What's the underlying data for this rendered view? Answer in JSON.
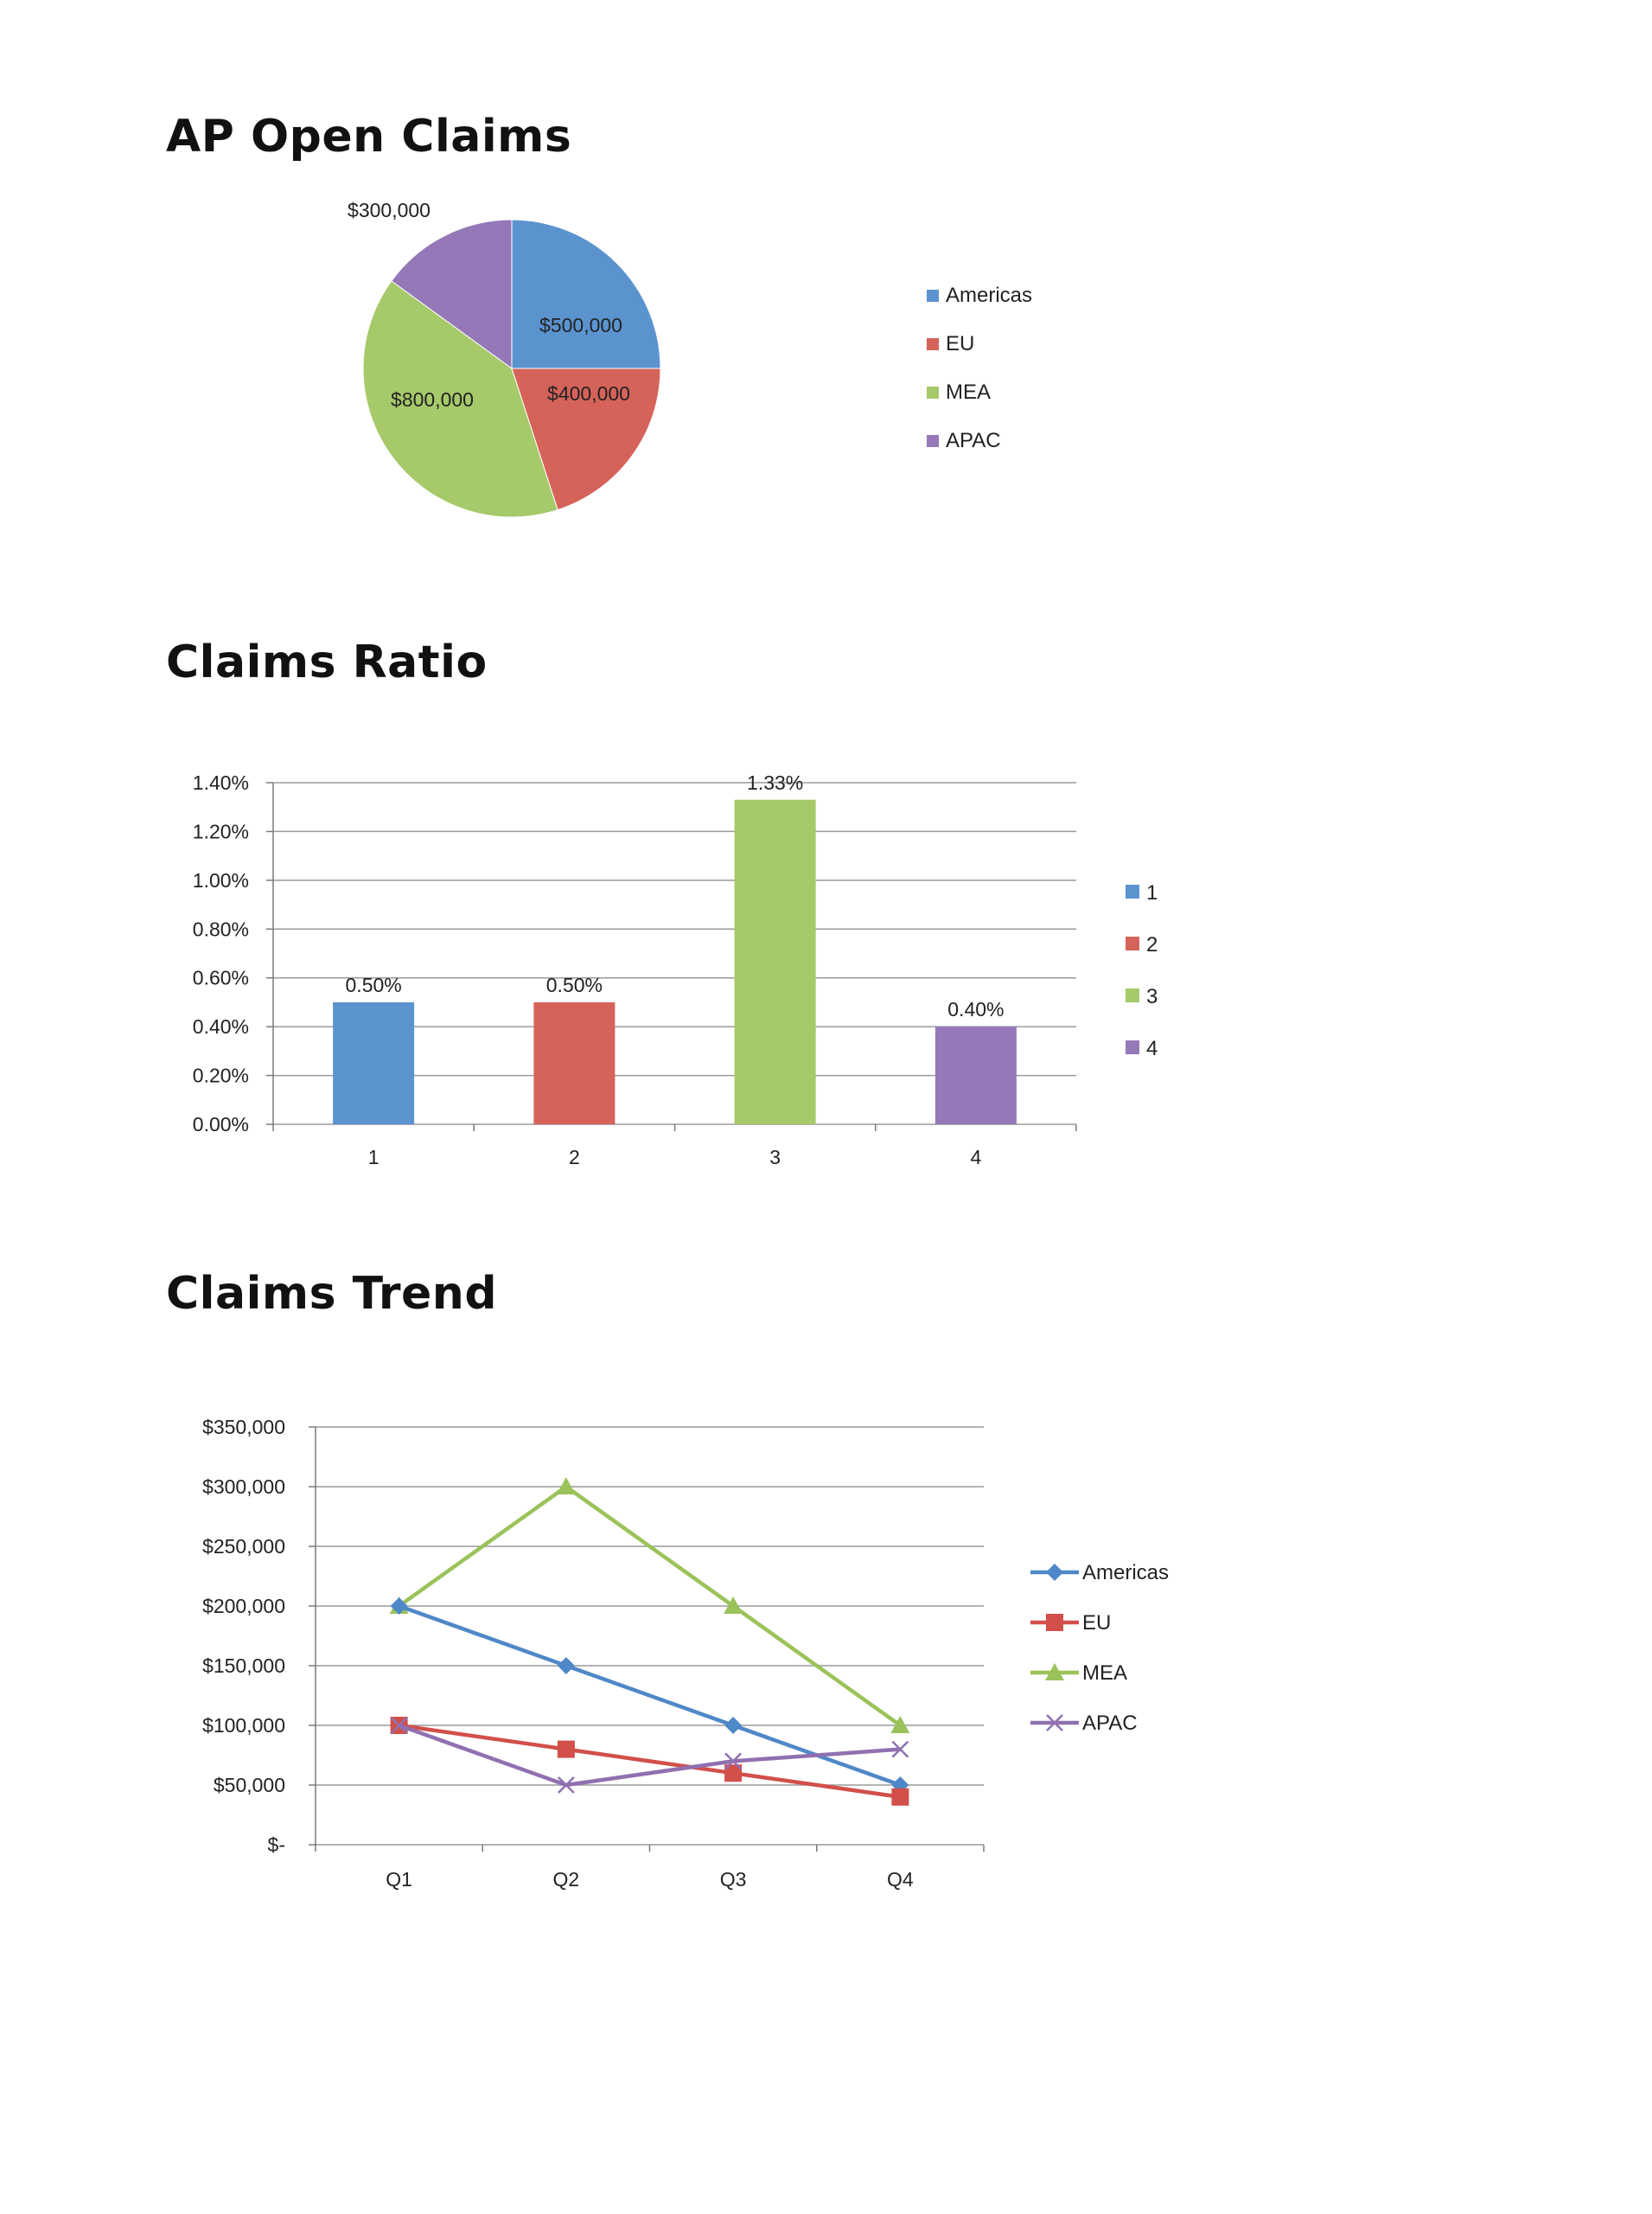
{
  "headings": {
    "pie": "AP Open Claims",
    "bar": "Claims Ratio",
    "line": "Claims Trend"
  },
  "chart_data": [
    {
      "type": "pie",
      "title": "",
      "legend_position": "right",
      "slices": [
        {
          "label": "Americas",
          "value": 500000,
          "display": "$500,000",
          "color": "#5b93cf"
        },
        {
          "label": "EU",
          "value": 400000,
          "display": "$400,000",
          "color": "#d5635a"
        },
        {
          "label": "MEA",
          "value": 800000,
          "display": "$800,000",
          "color": "#a6c96a"
        },
        {
          "label": "APAC",
          "value": 300000,
          "display": "$300,000",
          "color": "#9478b8"
        }
      ]
    },
    {
      "type": "bar",
      "title": "",
      "legend_position": "right",
      "grid": true,
      "categories": [
        "1",
        "2",
        "3",
        "4"
      ],
      "values": [
        0.5,
        0.5,
        1.33,
        0.4
      ],
      "value_labels": [
        "0.50%",
        "0.50%",
        "1.33%",
        "0.40%"
      ],
      "colors": [
        "#5b93cf",
        "#d5635a",
        "#a6c96a",
        "#9478b8"
      ],
      "legend": [
        "1",
        "2",
        "3",
        "4"
      ],
      "ylim": [
        0,
        1.4
      ],
      "yticks": [
        0,
        0.2,
        0.4,
        0.6,
        0.8,
        1.0,
        1.2,
        1.4
      ],
      "ytick_labels": [
        "0.00%",
        "0.20%",
        "0.40%",
        "0.60%",
        "0.80%",
        "1.00%",
        "1.20%",
        "1.40%"
      ]
    },
    {
      "type": "line",
      "title": "",
      "legend_position": "right",
      "grid": true,
      "categories": [
        "Q1",
        "Q2",
        "Q3",
        "Q4"
      ],
      "ylim": [
        0,
        350000
      ],
      "yticks": [
        0,
        50000,
        100000,
        150000,
        200000,
        250000,
        300000,
        350000
      ],
      "ytick_labels": [
        "$-",
        "$50,000",
        "$100,000",
        "$150,000",
        "$200,000",
        "$250,000",
        "$300,000",
        "$350,000"
      ],
      "series": [
        {
          "name": "Americas",
          "values": [
            200000,
            150000,
            100000,
            50000
          ],
          "color": "#4f88c8",
          "marker": "diamond"
        },
        {
          "name": "EU",
          "values": [
            100000,
            80000,
            60000,
            40000
          ],
          "color": "#d24f4a",
          "marker": "square"
        },
        {
          "name": "MEA",
          "values": [
            200000,
            300000,
            200000,
            100000
          ],
          "color": "#9bc25a",
          "marker": "triangle"
        },
        {
          "name": "APAC",
          "values": [
            100000,
            50000,
            70000,
            80000
          ],
          "color": "#9070b0",
          "marker": "x"
        }
      ]
    }
  ]
}
